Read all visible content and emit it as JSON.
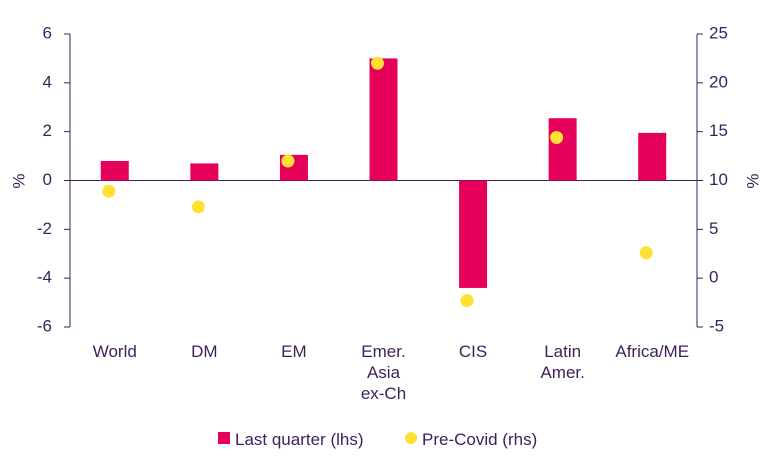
{
  "chart_data": {
    "type": "bar",
    "categories": [
      [
        "World"
      ],
      [
        "DM"
      ],
      [
        "EM"
      ],
      [
        "Emer.",
        "Asia",
        "ex-Ch"
      ],
      [
        "CIS"
      ],
      [
        "Latin",
        "Amer."
      ],
      [
        "Africa/ME"
      ]
    ],
    "series": [
      {
        "name": "Last quarter (lhs)",
        "type": "bar",
        "axis": "left",
        "color": "#e5005a",
        "values": [
          0.8,
          0.7,
          1.05,
          5.0,
          -4.4,
          2.55,
          1.95
        ]
      },
      {
        "name": "Pre-Covid (rhs)",
        "type": "scatter",
        "axis": "right",
        "color": "#ffe033",
        "values": [
          8.9,
          7.3,
          12.0,
          22.0,
          -2.3,
          14.4,
          2.6
        ]
      }
    ],
    "y_left": {
      "label": "%",
      "min": -6,
      "max": 6,
      "ticks": [
        -6,
        -4,
        -2,
        0,
        2,
        4,
        6
      ]
    },
    "y_right": {
      "label": "%",
      "min": -5,
      "max": 25,
      "ticks": [
        -5,
        0,
        5,
        10,
        15,
        20,
        25
      ]
    },
    "grid": false,
    "legend": "bottom-center"
  },
  "colors": {
    "axis": "#3d1f5c",
    "text": "#3d1f5c"
  }
}
